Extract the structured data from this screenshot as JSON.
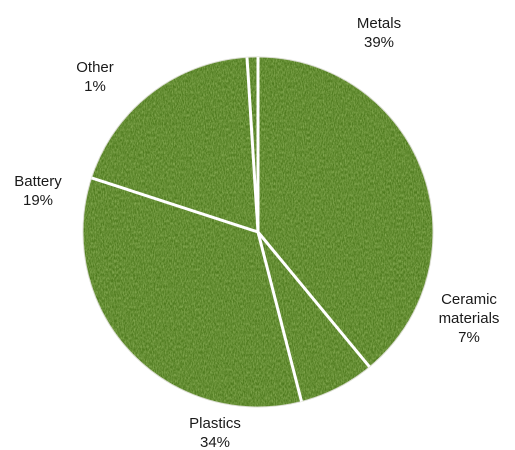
{
  "chart_data": {
    "type": "pie",
    "start_angle_deg": 90,
    "direction": "clockwise",
    "slices": [
      {
        "label": "Metals",
        "value_label": "39%",
        "value": 39
      },
      {
        "label": "Ceramic materials",
        "value_label": "7%",
        "value": 7
      },
      {
        "label": "Plastics",
        "value_label": "34%",
        "value": 34
      },
      {
        "label": "Battery",
        "value_label": "19%",
        "value": 19
      },
      {
        "label": "Other",
        "value_label": "1%",
        "value": 1
      }
    ],
    "fill": "grass texture",
    "colors": {
      "grass_base": "#4e7a1e",
      "grass_light": "#7fa93a",
      "grass_dark": "#2e4f10",
      "separator": "#ffffff"
    }
  }
}
